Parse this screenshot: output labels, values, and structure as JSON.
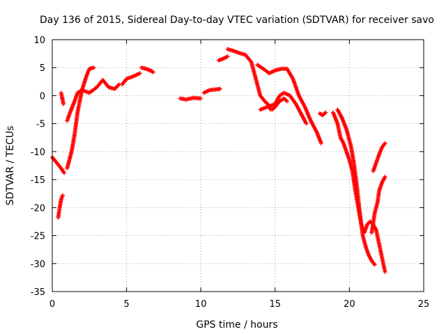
{
  "chart_data": {
    "type": "scatter",
    "title": "Day 136 of 2015, Sidereal Day-to-day VTEC variation (SDTVAR) for receiver savo",
    "xlabel": "GPS time / hours",
    "ylabel": "SDTVAR / TECUs",
    "xlim": [
      0,
      25
    ],
    "ylim": [
      -35,
      10
    ],
    "xticks": [
      "0",
      "5",
      "10",
      "15",
      "20",
      "25"
    ],
    "yticks": [
      "10",
      "5",
      "0",
      "-5",
      "-10",
      "-15",
      "-20",
      "-25",
      "-30",
      "-35"
    ],
    "grid": true,
    "legend": "none",
    "marker": "plus",
    "color": "#ff0000",
    "series": [
      {
        "x": [
          0.0,
          0.3,
          0.6,
          0.8
        ],
        "y": [
          -11.0,
          -12.0,
          -13.0,
          -13.8
        ]
      },
      {
        "x": [
          0.4,
          0.5,
          0.6,
          0.7
        ],
        "y": [
          -21.8,
          -20.0,
          -18.5,
          -17.8
        ]
      },
      {
        "x": [
          0.6,
          0.65,
          0.7,
          0.75
        ],
        "y": [
          0.5,
          -0.2,
          -0.8,
          -1.5
        ]
      },
      {
        "x": [
          1.0,
          1.3,
          1.5,
          1.7,
          2.0,
          2.3,
          2.5,
          2.8
        ],
        "y": [
          -13.0,
          -10.0,
          -7.0,
          -3.0,
          1.0,
          3.5,
          4.8,
          5.0
        ]
      },
      {
        "x": [
          1.0,
          1.2,
          1.5,
          1.7,
          2.0,
          2.5,
          3.0,
          3.4,
          3.8,
          4.2,
          4.5
        ],
        "y": [
          -4.5,
          -3.0,
          -1.0,
          0.5,
          1.0,
          0.5,
          1.5,
          2.8,
          1.5,
          1.2,
          2.0
        ]
      },
      {
        "x": [
          4.7,
          5.0,
          5.5,
          5.9
        ],
        "y": [
          2.0,
          3.0,
          3.5,
          4.0
        ]
      },
      {
        "x": [
          6.0,
          6.3,
          6.6,
          6.8
        ],
        "y": [
          5.0,
          4.8,
          4.5,
          4.2
        ]
      },
      {
        "x": [
          8.6,
          9.0,
          9.5,
          10.0
        ],
        "y": [
          -0.5,
          -0.7,
          -0.4,
          -0.5
        ]
      },
      {
        "x": [
          10.2,
          10.6,
          11.0,
          11.3
        ],
        "y": [
          0.5,
          1.0,
          1.1,
          1.2
        ]
      },
      {
        "x": [
          11.2,
          11.5,
          11.8
        ],
        "y": [
          6.3,
          6.6,
          7.0
        ]
      },
      {
        "x": [
          11.8,
          12.2,
          12.6,
          13.0,
          13.4,
          13.6,
          13.8,
          14.0,
          14.3,
          14.5,
          14.7
        ],
        "y": [
          8.3,
          8.0,
          7.6,
          7.3,
          6.0,
          4.0,
          2.0,
          0.0,
          -1.0,
          -1.5,
          -2.5
        ]
      },
      {
        "x": [
          13.8,
          14.2,
          14.6,
          15.0,
          15.4,
          15.8,
          16.2,
          16.6,
          17.0,
          17.4,
          17.8,
          18.1
        ],
        "y": [
          5.5,
          4.8,
          4.0,
          4.5,
          4.8,
          4.8,
          3.0,
          0.0,
          -2.0,
          -4.5,
          -6.5,
          -8.5
        ]
      },
      {
        "x": [
          14.0,
          14.5,
          15.0,
          15.3,
          15.6,
          16.0,
          16.4,
          16.8,
          17.1
        ],
        "y": [
          -2.5,
          -2.0,
          -1.5,
          0.0,
          0.5,
          0.0,
          -1.5,
          -3.5,
          -5.0
        ]
      },
      {
        "x": [
          14.8,
          15.0,
          15.3,
          15.6,
          15.8
        ],
        "y": [
          -2.5,
          -2.0,
          -1.0,
          -0.5,
          -1.0
        ]
      },
      {
        "x": [
          18.0,
          18.2,
          18.4
        ],
        "y": [
          -3.2,
          -3.5,
          -3.0
        ]
      },
      {
        "x": [
          18.9,
          19.2,
          19.4,
          19.6,
          19.8,
          20.0,
          20.2,
          20.4,
          20.6,
          20.8,
          21.0,
          21.2,
          21.4,
          21.6,
          21.8,
          22.0,
          22.2,
          22.4
        ],
        "y": [
          -3.0,
          -5.0,
          -7.5,
          -8.5,
          -10.0,
          -11.5,
          -13.5,
          -17.0,
          -20.0,
          -23.0,
          -24.5,
          -23.0,
          -22.5,
          -23.0,
          -24.0,
          -26.5,
          -29.0,
          -31.5
        ]
      },
      {
        "x": [
          19.2,
          19.5,
          19.8,
          20.1,
          20.3,
          20.5,
          20.7,
          20.9,
          21.1,
          21.3,
          21.5,
          21.7
        ],
        "y": [
          -2.5,
          -4.0,
          -6.0,
          -9.0,
          -12.0,
          -16.0,
          -21.0,
          -25.0,
          -27.0,
          -28.5,
          -29.5,
          -30.2
        ]
      },
      {
        "x": [
          21.5,
          21.7,
          21.9,
          22.0,
          22.2,
          22.4
        ],
        "y": [
          -24.5,
          -21.0,
          -19.0,
          -17.0,
          -15.5,
          -14.5
        ]
      },
      {
        "x": [
          21.6,
          21.8,
          22.0,
          22.2,
          22.4
        ],
        "y": [
          -13.5,
          -12.0,
          -10.5,
          -9.2,
          -8.5
        ]
      }
    ]
  }
}
